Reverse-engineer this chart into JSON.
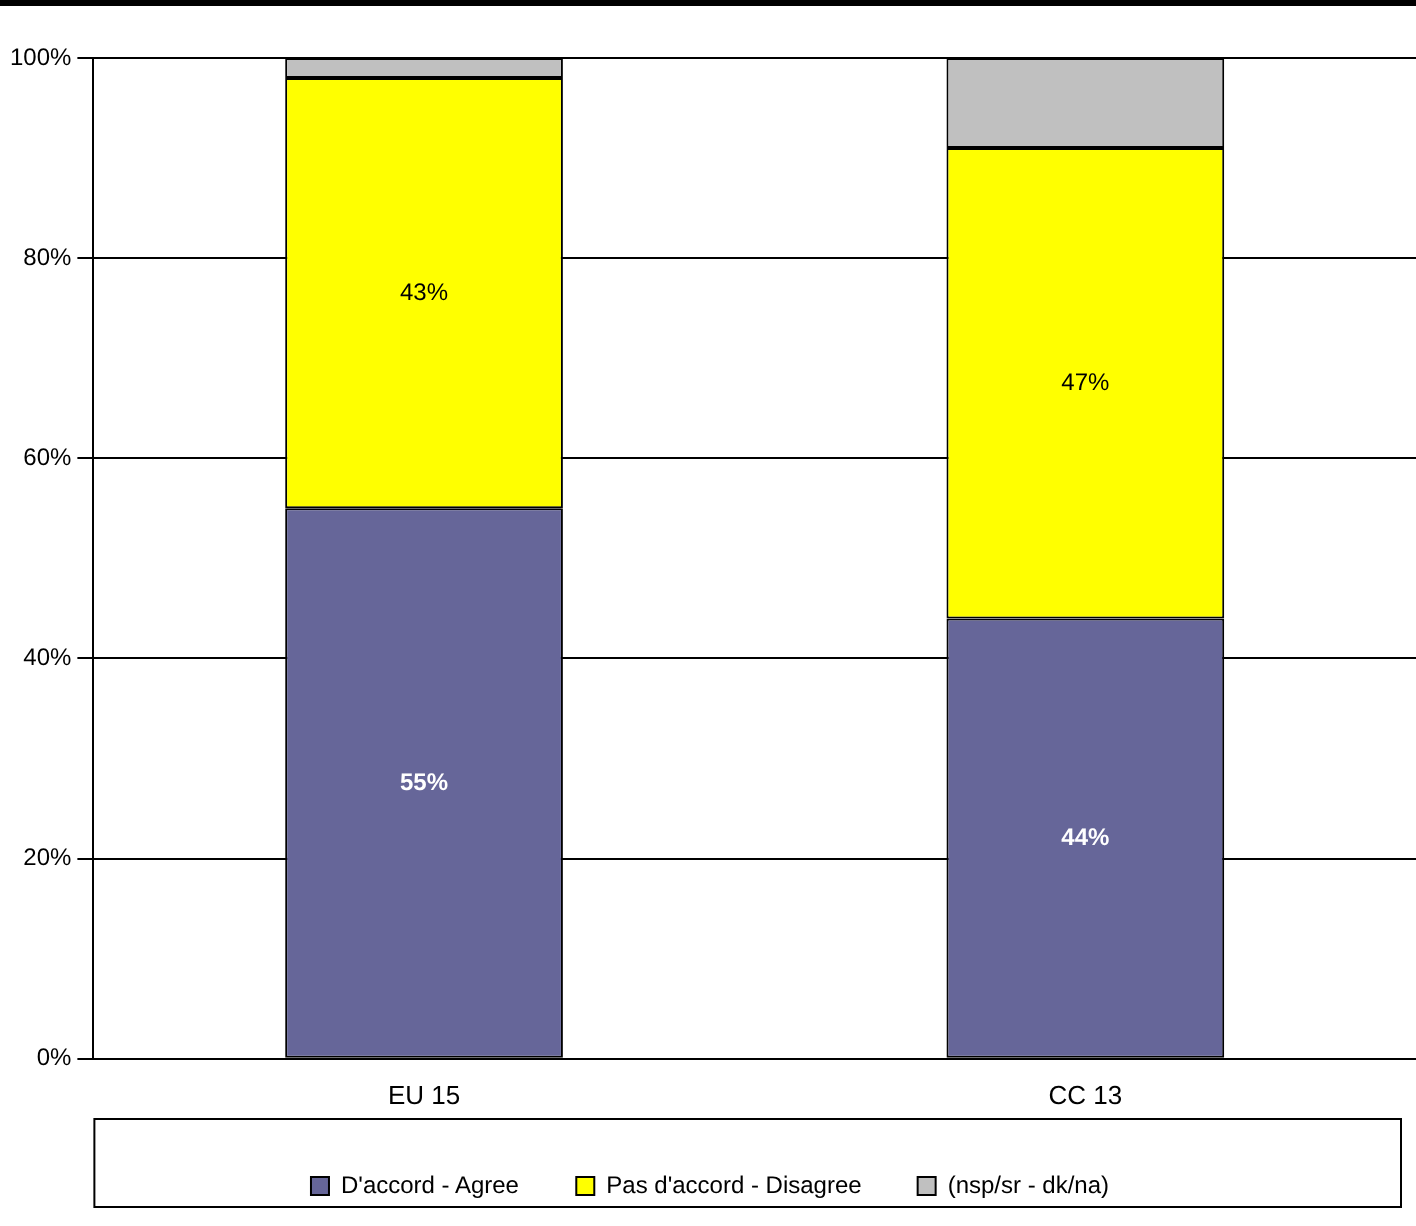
{
  "chart_data": {
    "type": "bar",
    "stacked": true,
    "categories": [
      "EU 15",
      "CC 13"
    ],
    "series": [
      {
        "name": "D'accord - Agree",
        "color": "#666699",
        "values": [
          55,
          44
        ],
        "value_labels": [
          "55%",
          "44%"
        ]
      },
      {
        "name": "Pas d'accord - Disagree",
        "color": "#ffff00",
        "values": [
          43,
          47
        ],
        "value_labels": [
          "43%",
          "47%"
        ]
      },
      {
        "name": "(nsp/sr - dk/na)",
        "color": "#c0c0c0",
        "values": [
          2,
          9
        ]
      }
    ],
    "ylim": [
      0,
      100
    ],
    "yticks": [
      {
        "value": 0,
        "label": "0%"
      },
      {
        "value": 20,
        "label": "20%"
      },
      {
        "value": 40,
        "label": "40%"
      },
      {
        "value": 60,
        "label": "60%"
      },
      {
        "value": 80,
        "label": "80%"
      },
      {
        "value": 100,
        "label": "100%"
      }
    ],
    "grid": "y",
    "legend": "bottom"
  }
}
